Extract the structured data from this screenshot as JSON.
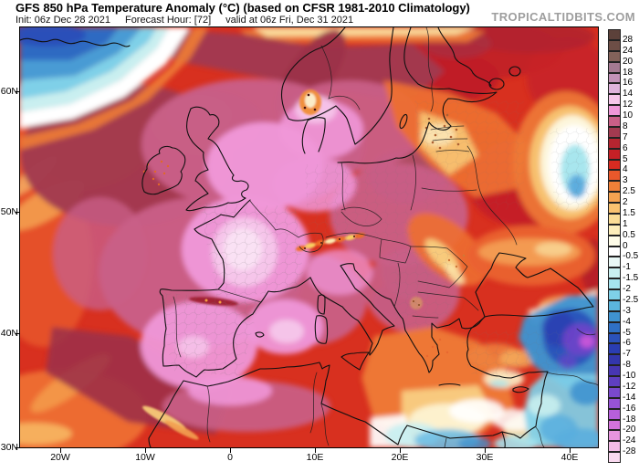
{
  "header": {
    "title": "GFS 850 hPa Temperature Anomaly (°C) (based on CFSR 1981-2010 Climatology)",
    "init": "Init: 06z Dec 28 2021",
    "forecast_hour": "Forecast Hour: [72]",
    "valid": "valid at 06z Fri, Dec 31 2021",
    "watermark": "TROPICALTIDBITS.COM"
  },
  "map": {
    "lat_labels": [
      "60N",
      "50N",
      "40N",
      "30N"
    ],
    "lon_labels": [
      "20W",
      "10W",
      "0",
      "10E",
      "20E",
      "30E",
      "40E"
    ]
  },
  "colorbar": {
    "unit": "°C",
    "tick_labels": [
      "28",
      "24",
      "20",
      "18",
      "16",
      "14",
      "12",
      "10",
      "8",
      "7",
      "6",
      "5",
      "4",
      "3",
      "2.5",
      "2",
      "1.5",
      "1",
      "0.5",
      "0",
      "-0.5",
      "-1",
      "-1.5",
      "-2",
      "-2.5",
      "-3",
      "-4",
      "-5",
      "-6",
      "-7",
      "-8",
      "-10",
      "-12",
      "-14",
      "-16",
      "-18",
      "-20",
      "-24",
      "-28"
    ],
    "segment_colors": [
      "#5c413a",
      "#6d4e46",
      "#83625a",
      "#a47a92",
      "#c292b8",
      "#dfb3dc",
      "#f6c6ea",
      "#ef97d8",
      "#c95f87",
      "#a23a50",
      "#b52530",
      "#c62026",
      "#d82b21",
      "#e9582b",
      "#f08038",
      "#f5a351",
      "#f9c270",
      "#fbdd96",
      "#fdeeba",
      "#fefce8",
      "#ffffff",
      "#e9f8f6",
      "#c9eff0",
      "#a5e3ee",
      "#7fd0e8",
      "#5bb5dd",
      "#3f93d0",
      "#2f70c4",
      "#2b52ba",
      "#2a3db2",
      "#3336ac",
      "#4736b2",
      "#5f3fc0",
      "#7a49cc",
      "#9753d6",
      "#b75fdc",
      "#d473dc",
      "#e795de",
      "#f3bce6",
      "#f9d9ef"
    ]
  }
}
